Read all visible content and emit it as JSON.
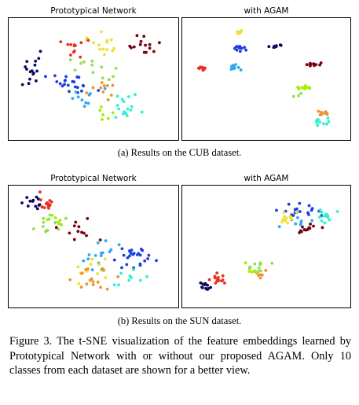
{
  "figure": {
    "number": "Figure 3.",
    "caption": "The t-SNE visualization of the feature embeddings learned by Prototypical Network with or without our proposed AGAM. Only 10 classes from each dataset are shown for a better view."
  },
  "class_colors": [
    "#0a0a60",
    "#1a3fe0",
    "#2ea8f0",
    "#30f0d0",
    "#90e050",
    "#f0e030",
    "#f09030",
    "#e83020",
    "#780010",
    "#a0f000"
  ],
  "subfigures": [
    {
      "caption": "(a) Results on the CUB dataset.",
      "panels": [
        {
          "title": "Prototypical Network",
          "chart_data": {
            "type": "scatter",
            "xlim": [
              0,
              100
            ],
            "ylim": [
              0,
              100
            ],
            "clusters": [
              {
                "class": 0,
                "cx": 12,
                "cy": 55,
                "sx": 9,
                "sy": 12,
                "n": 16
              },
              {
                "class": 1,
                "cx": 35,
                "cy": 45,
                "sx": 15,
                "sy": 9,
                "n": 22
              },
              {
                "class": 2,
                "cx": 46,
                "cy": 33,
                "sx": 10,
                "sy": 8,
                "n": 10
              },
              {
                "class": 3,
                "cx": 70,
                "cy": 25,
                "sx": 8,
                "sy": 10,
                "n": 16
              },
              {
                "class": 4,
                "cx": 48,
                "cy": 60,
                "sx": 13,
                "sy": 9,
                "n": 12
              },
              {
                "class": 5,
                "cx": 56,
                "cy": 78,
                "sx": 10,
                "sy": 12,
                "n": 14
              },
              {
                "class": 6,
                "cx": 55,
                "cy": 40,
                "sx": 8,
                "sy": 8,
                "n": 10
              },
              {
                "class": 7,
                "cx": 38,
                "cy": 78,
                "sx": 6,
                "sy": 10,
                "n": 12
              },
              {
                "class": 8,
                "cx": 82,
                "cy": 80,
                "sx": 9,
                "sy": 8,
                "n": 14
              },
              {
                "class": 9,
                "cx": 60,
                "cy": 20,
                "sx": 10,
                "sy": 6,
                "n": 6
              }
            ]
          }
        },
        {
          "title": "with AGAM",
          "chart_data": {
            "type": "scatter",
            "xlim": [
              0,
              100
            ],
            "ylim": [
              0,
              100
            ],
            "clusters": [
              {
                "class": 0,
                "cx": 57,
                "cy": 79,
                "sx": 3,
                "sy": 2,
                "n": 8
              },
              {
                "class": 1,
                "cx": 34,
                "cy": 78,
                "sx": 4,
                "sy": 3,
                "n": 10
              },
              {
                "class": 2,
                "cx": 30,
                "cy": 60,
                "sx": 5,
                "sy": 3,
                "n": 12
              },
              {
                "class": 3,
                "cx": 85,
                "cy": 12,
                "sx": 5,
                "sy": 3,
                "n": 10
              },
              {
                "class": 4,
                "cx": 70,
                "cy": 36,
                "sx": 3,
                "sy": 3,
                "n": 3
              },
              {
                "class": 5,
                "cx": 33,
                "cy": 92,
                "sx": 3,
                "sy": 2,
                "n": 10
              },
              {
                "class": 6,
                "cx": 86,
                "cy": 20,
                "sx": 4,
                "sy": 2,
                "n": 8
              },
              {
                "class": 7,
                "cx": 10,
                "cy": 60,
                "sx": 3,
                "sy": 2,
                "n": 10
              },
              {
                "class": 8,
                "cx": 80,
                "cy": 63,
                "sx": 4,
                "sy": 2,
                "n": 10
              },
              {
                "class": 9,
                "cx": 73,
                "cy": 42,
                "sx": 4,
                "sy": 2,
                "n": 10
              }
            ]
          }
        }
      ]
    },
    {
      "caption": "(b) Results on the SUN dataset.",
      "panels": [
        {
          "title": "Prototypical Network",
          "chart_data": {
            "type": "scatter",
            "xlim": [
              0,
              100
            ],
            "ylim": [
              0,
              100
            ],
            "clusters": [
              {
                "class": 0,
                "cx": 10,
                "cy": 90,
                "sx": 6,
                "sy": 6,
                "n": 12
              },
              {
                "class": 1,
                "cx": 75,
                "cy": 40,
                "sx": 11,
                "sy": 10,
                "n": 24
              },
              {
                "class": 2,
                "cx": 55,
                "cy": 45,
                "sx": 10,
                "sy": 12,
                "n": 14
              },
              {
                "class": 3,
                "cx": 70,
                "cy": 22,
                "sx": 10,
                "sy": 8,
                "n": 10
              },
              {
                "class": 4,
                "cx": 22,
                "cy": 70,
                "sx": 10,
                "sy": 8,
                "n": 14
              },
              {
                "class": 5,
                "cx": 50,
                "cy": 28,
                "sx": 12,
                "sy": 10,
                "n": 12
              },
              {
                "class": 6,
                "cx": 48,
                "cy": 22,
                "sx": 14,
                "sy": 10,
                "n": 16
              },
              {
                "class": 7,
                "cx": 20,
                "cy": 88,
                "sx": 5,
                "sy": 7,
                "n": 14
              },
              {
                "class": 8,
                "cx": 40,
                "cy": 62,
                "sx": 10,
                "sy": 10,
                "n": 12
              },
              {
                "class": 9,
                "cx": 26,
                "cy": 74,
                "sx": 6,
                "sy": 6,
                "n": 6
              }
            ]
          }
        },
        {
          "title": "with AGAM",
          "chart_data": {
            "type": "scatter",
            "xlim": [
              0,
              100
            ],
            "ylim": [
              0,
              100
            ],
            "clusters": [
              {
                "class": 0,
                "cx": 12,
                "cy": 14,
                "sx": 5,
                "sy": 4,
                "n": 12
              },
              {
                "class": 1,
                "cx": 70,
                "cy": 82,
                "sx": 10,
                "sy": 7,
                "n": 18
              },
              {
                "class": 2,
                "cx": 72,
                "cy": 72,
                "sx": 10,
                "sy": 6,
                "n": 10
              },
              {
                "class": 3,
                "cx": 86,
                "cy": 78,
                "sx": 7,
                "sy": 5,
                "n": 12
              },
              {
                "class": 4,
                "cx": 44,
                "cy": 32,
                "sx": 6,
                "sy": 6,
                "n": 12
              },
              {
                "class": 5,
                "cx": 62,
                "cy": 74,
                "sx": 7,
                "sy": 7,
                "n": 12
              },
              {
                "class": 6,
                "cx": 46,
                "cy": 26,
                "sx": 5,
                "sy": 5,
                "n": 6
              },
              {
                "class": 7,
                "cx": 20,
                "cy": 20,
                "sx": 5,
                "sy": 4,
                "n": 14
              },
              {
                "class": 8,
                "cx": 74,
                "cy": 66,
                "sx": 8,
                "sy": 5,
                "n": 14
              },
              {
                "class": 9,
                "cx": 40,
                "cy": 28,
                "sx": 6,
                "sy": 6,
                "n": 6
              }
            ]
          }
        }
      ]
    }
  ]
}
